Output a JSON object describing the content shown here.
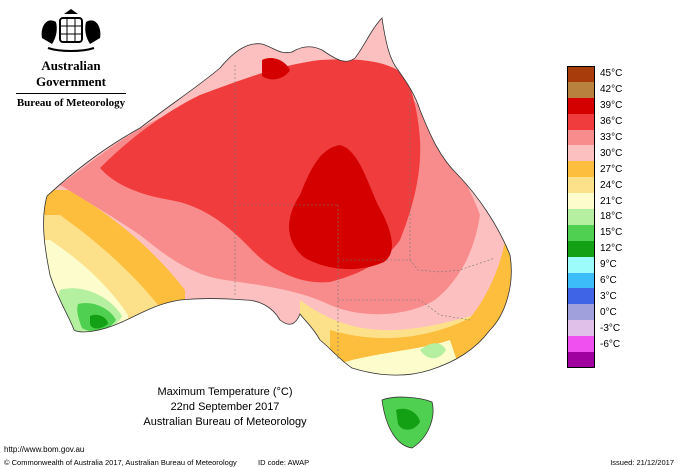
{
  "branding": {
    "government": "Australian Government",
    "agency": "Bureau of Meteorology"
  },
  "title": {
    "line1": "Maximum Temperature (°C)",
    "line2": "22nd September 2017",
    "line3": "Australian Bureau of Meteorology"
  },
  "legend": [
    {
      "label": "45°C",
      "color": "#a83c0a"
    },
    {
      "label": "42°C",
      "color": "#b8813d"
    },
    {
      "label": "39°C",
      "color": "#d40000"
    },
    {
      "label": "36°C",
      "color": "#f03c3c"
    },
    {
      "label": "33°C",
      "color": "#f88c8c"
    },
    {
      "label": "30°C",
      "color": "#fcc0c0"
    },
    {
      "label": "27°C",
      "color": "#fcbe3c"
    },
    {
      "label": "24°C",
      "color": "#fce08a"
    },
    {
      "label": "21°C",
      "color": "#fcfccc"
    },
    {
      "label": "18°C",
      "color": "#b4f0a0"
    },
    {
      "label": "15°C",
      "color": "#50d050"
    },
    {
      "label": "12°C",
      "color": "#14a014"
    },
    {
      "label": "9°C",
      "color": "#9cfcfc"
    },
    {
      "label": "6°C",
      "color": "#3cbcf8"
    },
    {
      "label": "3°C",
      "color": "#4064e6"
    },
    {
      "label": "0°C",
      "color": "#a0a0dc"
    },
    {
      "label": "-3°C",
      "color": "#e0c0e8"
    },
    {
      "label": "-6°C",
      "color": "#f050f0"
    },
    {
      "label": "",
      "color": "#a000a0"
    }
  ],
  "footer": {
    "url": "http://www.bom.gov.au",
    "copyright": "© Commonwealth of Australia 2017, Australian Bureau of Meteorology",
    "id_code": "ID code: AWAP",
    "issued": "Issued: 21/12/2017"
  }
}
